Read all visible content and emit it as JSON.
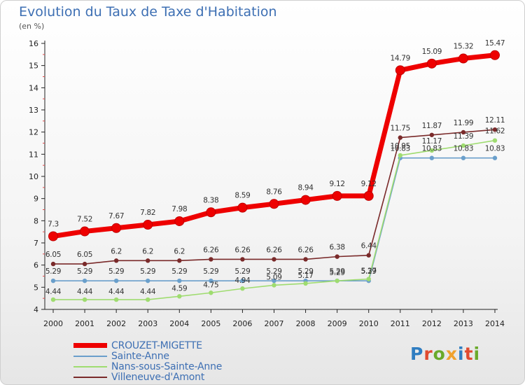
{
  "title": "Evolution du Taux de Taxe d'Habitation",
  "unit_label": "(en %)",
  "logo": {
    "text": "Proxiti",
    "colors": [
      "#2f7dc1",
      "#e04a2f",
      "#6aaa2a",
      "#f0a22e",
      "#2f7dc1",
      "#e04a2f",
      "#6aaa2a"
    ]
  },
  "chart_data": {
    "type": "line",
    "title": "Evolution du Taux de Taxe d'Habitation",
    "ylabel": "(en %)",
    "xlabel": "",
    "ylim": [
      4,
      16
    ],
    "yticks": [
      4,
      5,
      6,
      7,
      8,
      9,
      10,
      11,
      12,
      13,
      14,
      15,
      16
    ],
    "grid": false,
    "legend_position": "bottom-left",
    "x": [
      "2000",
      "2001",
      "2002",
      "2003",
      "2004",
      "2005",
      "2006",
      "2007",
      "2008",
      "2009",
      "2010",
      "2011",
      "2012",
      "2013",
      "2014"
    ],
    "series": [
      {
        "name": "CROUZET-MIGETTE",
        "color": "#ee0000",
        "values": [
          7.3,
          7.52,
          7.67,
          7.82,
          7.98,
          8.38,
          8.59,
          8.76,
          8.94,
          9.12,
          9.12,
          14.79,
          15.09,
          15.32,
          15.47
        ],
        "labels": [
          "7.3",
          "7.52",
          "7.67",
          "7.82",
          "7.98",
          "8.38",
          "8.59",
          "8.76",
          "8.94",
          "9.12",
          "9.12",
          "14.79",
          "15.09",
          "15.32",
          "15.47"
        ]
      },
      {
        "name": "Sainte-Anne",
        "color": "#6a9fcb",
        "values": [
          5.29,
          5.29,
          5.29,
          5.29,
          5.29,
          5.29,
          5.29,
          5.29,
          5.29,
          5.29,
          5.29,
          10.83,
          10.83,
          10.83,
          10.83
        ],
        "labels": [
          "5.29",
          "5.29",
          "5.29",
          "5.29",
          "5.29",
          "5.29",
          "5.29",
          "5.29",
          "5.29",
          "5.29",
          "5.29",
          "10.83",
          "10.83",
          "10.83",
          "10.83"
        ]
      },
      {
        "name": "Nans-sous-Sainte-Anne",
        "color": "#9fdc70",
        "values": [
          4.44,
          4.44,
          4.44,
          4.44,
          4.59,
          4.75,
          4.94,
          5.09,
          5.17,
          5.29,
          5.37,
          10.95,
          11.17,
          11.39,
          11.62
        ],
        "labels": [
          "4.44",
          "4.44",
          "4.44",
          "4.44",
          "4.59",
          "4.75",
          "4.94",
          "5.09",
          "5.17",
          "5.29",
          "5.37",
          "10.95",
          "11.17",
          "11.39",
          "11.62"
        ]
      },
      {
        "name": "Villeneuve-d'Amont",
        "color": "#7a2a2a",
        "values": [
          6.05,
          6.05,
          6.2,
          6.2,
          6.2,
          6.26,
          6.26,
          6.26,
          6.26,
          6.38,
          6.44,
          11.75,
          11.87,
          11.99,
          12.11
        ],
        "labels": [
          "6.05",
          "6.05",
          "6.2",
          "6.2",
          "6.2",
          "6.26",
          "6.26",
          "6.26",
          "6.26",
          "6.38",
          "6.44",
          "11.75",
          "11.87",
          "11.99",
          "12.11"
        ]
      }
    ]
  }
}
